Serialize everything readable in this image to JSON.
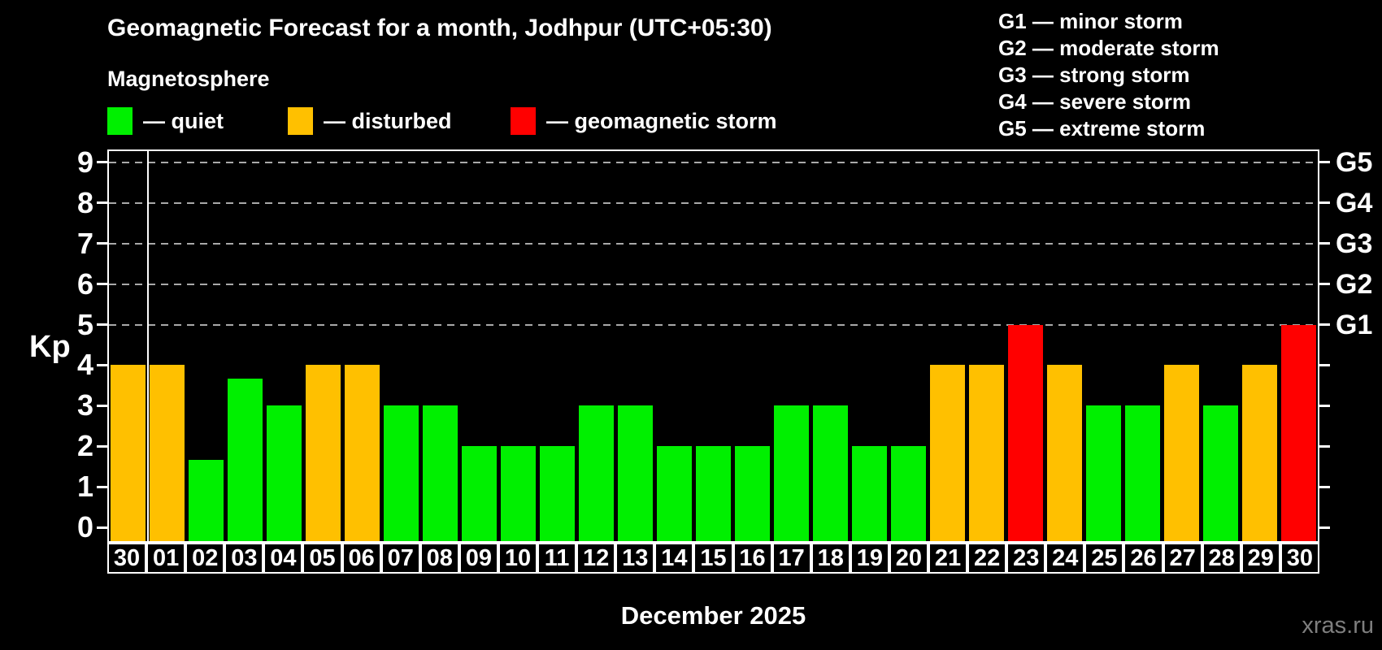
{
  "chart_data": {
    "type": "bar",
    "title": "Geomagnetic Forecast for a month, Jodhpur (UTC+05:30)",
    "subtitle": "Magnetosphere",
    "ylabel": "Kp",
    "xlabel": "December 2025",
    "ylim": [
      0,
      9
    ],
    "yticks": [
      0,
      1,
      2,
      3,
      4,
      5,
      6,
      7,
      8,
      9
    ],
    "gridlines": [
      5,
      6,
      7,
      8,
      9
    ],
    "grid": "dashed horizontal lines at storm levels only",
    "legend_position": "top-left",
    "categories": [
      "30",
      "01",
      "02",
      "03",
      "04",
      "05",
      "06",
      "07",
      "08",
      "09",
      "10",
      "11",
      "12",
      "13",
      "14",
      "15",
      "16",
      "17",
      "18",
      "19",
      "20",
      "21",
      "22",
      "23",
      "24",
      "25",
      "26",
      "27",
      "28",
      "29",
      "30"
    ],
    "values": [
      4,
      4,
      1.67,
      3.67,
      3,
      4,
      4,
      3,
      3,
      2,
      2,
      2,
      3,
      3,
      2,
      2,
      2,
      3,
      3,
      2,
      2,
      4,
      4,
      5,
      4,
      3,
      3,
      4,
      3,
      4,
      5
    ],
    "status": [
      "disturbed",
      "disturbed",
      "quiet",
      "quiet",
      "quiet",
      "disturbed",
      "disturbed",
      "quiet",
      "quiet",
      "quiet",
      "quiet",
      "quiet",
      "quiet",
      "quiet",
      "quiet",
      "quiet",
      "quiet",
      "quiet",
      "quiet",
      "quiet",
      "quiet",
      "disturbed",
      "disturbed",
      "storm",
      "disturbed",
      "quiet",
      "quiet",
      "disturbed",
      "quiet",
      "disturbed",
      "storm"
    ],
    "status_colors": {
      "quiet": "#00f000",
      "disturbed": "#ffc000",
      "storm": "#ff0000"
    },
    "right_axis": [
      {
        "kp": 5,
        "label": "G1"
      },
      {
        "kp": 6,
        "label": "G2"
      },
      {
        "kp": 7,
        "label": "G3"
      },
      {
        "kp": 8,
        "label": "G4"
      },
      {
        "kp": 9,
        "label": "G5"
      }
    ],
    "legend": [
      {
        "label": "— quiet",
        "status": "quiet"
      },
      {
        "label": "— disturbed",
        "status": "disturbed"
      },
      {
        "label": "— geomagnetic storm",
        "status": "storm"
      }
    ],
    "g_scale_legend": [
      "G1 — minor storm",
      "G2 — moderate storm",
      "G3 — strong storm",
      "G4 — severe storm",
      "G5 — extreme storm"
    ]
  },
  "footer": {
    "watermark": "xras.ru"
  }
}
